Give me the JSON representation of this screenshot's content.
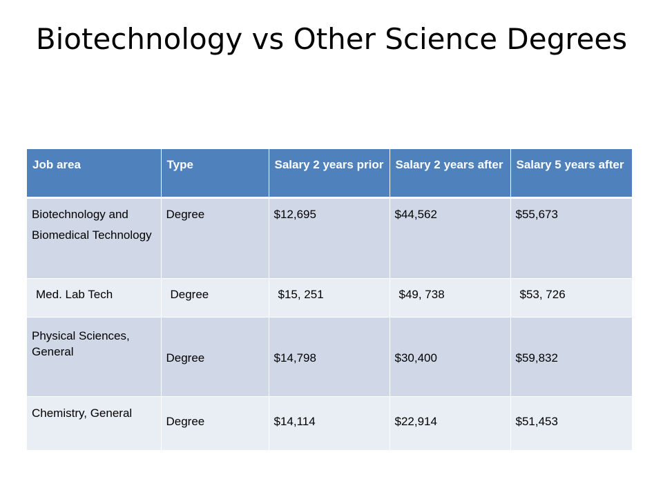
{
  "slide": {
    "title": "Biotechnology vs Other Science Degrees"
  },
  "table": {
    "headers": [
      "Job area",
      "Type",
      "Salary 2 years prior",
      "Salary 2 years after",
      "Salary 5 years after"
    ],
    "rows": [
      [
        "Biotechnology and Biomedical Technology",
        "Degree",
        "$12,695",
        "$44,562",
        "$55,673"
      ],
      [
        "Med. Lab Tech",
        "Degree",
        "$15, 251",
        "$49, 738",
        "$53, 726"
      ],
      [
        "Physical Sciences, General",
        "Degree",
        "$14,798",
        "$30,400",
        "$59,832"
      ],
      [
        "Chemistry, General",
        "Degree",
        "$14,114",
        "$22,914",
        "$51,453"
      ]
    ]
  },
  "colors": {
    "header_bg": "#4f81bd",
    "row_dark": "#d0d8e8",
    "row_light": "#e9edf4"
  }
}
